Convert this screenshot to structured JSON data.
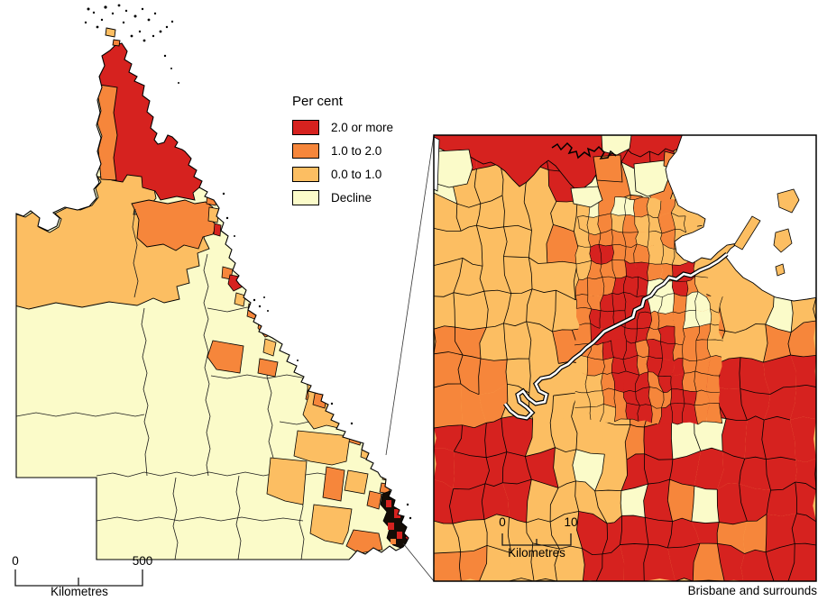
{
  "legend": {
    "title": "Per cent",
    "items": [
      {
        "label": "2.0 or more",
        "color": "#d6221f"
      },
      {
        "label": "1.0 to 2.0",
        "color": "#f6863b"
      },
      {
        "label": "0.0 to 1.0",
        "color": "#fcbe62"
      },
      {
        "label": "Decline",
        "color": "#fbfbc9"
      }
    ]
  },
  "main_scalebar": {
    "start": "0",
    "end": "500",
    "unit": "Kilometres"
  },
  "inset": {
    "scalebar": {
      "start": "0",
      "end": "10",
      "unit": "Kilometres"
    },
    "caption": "Brisbane and surrounds"
  },
  "colors": {
    "red": "#d6221f",
    "orange": "#f6863b",
    "light_orange": "#fcbe62",
    "pale_yellow": "#fbfbc9",
    "border": "#000000",
    "sea": "#ffffff"
  }
}
